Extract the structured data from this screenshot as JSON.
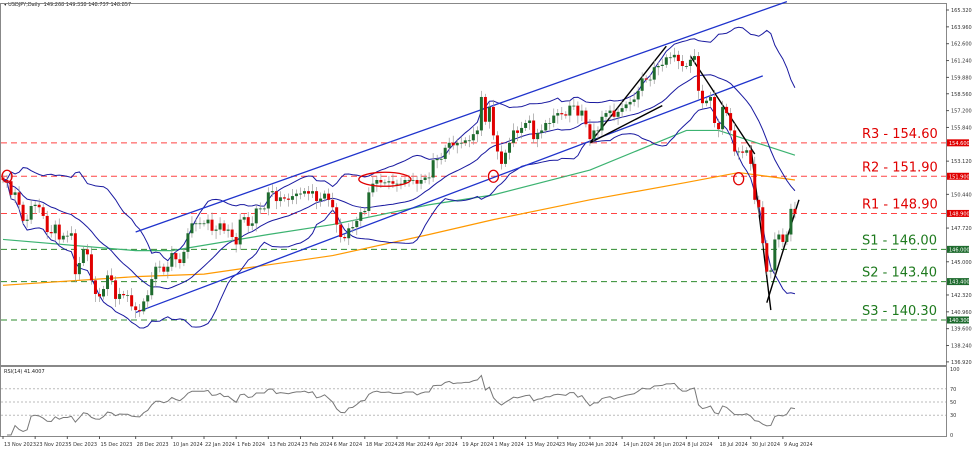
{
  "header": {
    "symbol": "USDJPY,Daily",
    "ohlc": "149.268 149.338 148.737 148.857"
  },
  "rsi_header": "RSI(14) 41.4007",
  "colors": {
    "bull": "#1e6b2e",
    "bear": "#e00000",
    "bollinger": "#1a1aa0",
    "channel": "#1f33cc",
    "ma_green": "#3cb371",
    "ma_orange": "#ff9900",
    "resistance": "#ff4444",
    "support": "#2e8b2e",
    "trendline": "#000000"
  },
  "chart_data": [
    {
      "type": "candlestick",
      "title": "USDJPY,Daily",
      "ylim": [
        136.92,
        165.32
      ],
      "start_date": "13 Nov 2023",
      "closes": [
        151.6,
        151.5,
        150.4,
        150.6,
        149.6,
        148.3,
        148.4,
        149.5,
        149.6,
        149.4,
        148.7,
        147.4,
        147.3,
        148.0,
        146.8,
        147.1,
        147.1,
        147.3,
        144.0,
        144.9,
        146.0,
        145.6,
        143.5,
        142.4,
        142.2,
        142.8,
        143.9,
        143.5,
        142.0,
        142.4,
        142.3,
        142.3,
        141.4,
        141.1,
        141.0,
        141.8,
        142.3,
        143.6,
        144.6,
        144.6,
        144.2,
        144.6,
        145.7,
        145.2,
        144.9,
        145.8,
        147.3,
        148.1,
        148.1,
        148.1,
        148.1,
        148.4,
        147.5,
        147.6,
        148.1,
        147.5,
        147.6,
        147.0,
        146.4,
        148.4,
        148.6,
        147.9,
        148.1,
        149.3,
        149.3,
        149.3,
        150.6,
        150.7,
        149.9,
        150.2,
        150.1,
        150.0,
        150.3,
        150.5,
        150.5,
        150.7,
        150.5,
        150.7,
        149.9,
        150.1,
        150.5,
        150.0,
        149.4,
        148.0,
        147.0,
        146.9,
        147.7,
        147.8,
        148.3,
        149.0,
        149.1,
        150.6,
        151.3,
        151.6,
        151.4,
        151.4,
        151.5,
        151.3,
        151.3,
        151.3,
        151.6,
        151.6,
        151.6,
        151.3,
        151.6,
        151.8,
        151.8,
        153.2,
        153.3,
        153.3,
        154.2,
        154.6,
        154.4,
        154.6,
        154.6,
        154.8,
        154.8,
        155.3,
        155.6,
        158.3,
        156.3,
        157.5,
        155.2,
        153.9,
        152.9,
        153.8,
        154.6,
        155.6,
        155.4,
        155.8,
        156.2,
        156.4,
        154.9,
        155.4,
        155.6,
        156.2,
        156.2,
        156.8,
        157.0,
        156.9,
        156.8,
        157.6,
        157.6,
        156.8,
        157.2,
        156.1,
        154.9,
        155.6,
        155.6,
        156.7,
        157.0,
        157.2,
        156.7,
        157.1,
        157.4,
        157.7,
        157.9,
        158.1,
        158.8,
        159.8,
        159.7,
        159.7,
        160.7,
        160.8,
        160.9,
        161.5,
        161.5,
        161.7,
        161.2,
        160.8,
        160.8,
        161.3,
        161.6,
        158.8,
        157.8,
        158.0,
        158.3,
        156.2,
        155.7,
        157.5,
        157.0,
        155.6,
        153.9,
        153.9,
        153.8,
        154.0,
        152.9,
        150.0,
        149.4,
        146.5,
        144.2,
        144.3,
        146.8,
        147.2,
        146.6,
        147.2,
        149.27,
        148.857
      ],
      "last_candle": {
        "open": 149.268,
        "high": 149.338,
        "low": 148.737,
        "close": 148.857
      },
      "ma_green": [
        [
          "13 Nov 2023",
          146.8
        ],
        [
          "28 Dec 2023",
          145.9
        ],
        [
          "10 Jan 2024",
          145.9
        ],
        [
          "13 Feb 2024",
          147.2
        ],
        [
          "6 Mar 2024",
          148.0
        ],
        [
          "9 Apr 2024",
          149.6
        ],
        [
          "1 May 2024",
          150.4
        ],
        [
          "4 Jun 2024",
          152.4
        ],
        [
          "8 Jul 2024",
          155.6
        ],
        [
          "18 Jul 2024",
          155.6
        ],
        [
          "14 Aug 2024",
          153.6
        ]
      ],
      "ma_orange": [
        [
          "13 Nov 2023",
          143.1
        ],
        [
          "28 Dec 2023",
          143.8
        ],
        [
          "22 Jan 2024",
          144.0
        ],
        [
          "6 Mar 2024",
          145.5
        ],
        [
          "9 Apr 2024",
          147.2
        ],
        [
          "1 May 2024",
          148.4
        ],
        [
          "4 Jun 2024",
          150.0
        ],
        [
          "8 Jul 2024",
          151.4
        ],
        [
          "25 Jul 2024",
          152.2
        ],
        [
          "14 Aug 2024",
          151.6
        ]
      ],
      "channel_lines": [
        [
          [
            "28 Dec 2023",
            147.4
          ],
          [
            "12 Aug 2024",
            166.0
          ]
        ],
        [
          [
            "28 Dec 2023",
            140.9
          ],
          [
            "2 Aug 2024",
            160.0
          ]
        ]
      ],
      "trend_lines": [
        [
          [
            "4 Jun 2024",
            154.6
          ],
          [
            "1 Jul 2024",
            162.4
          ]
        ],
        [
          [
            "4 Jun 2024",
            154.6
          ],
          [
            "28 Jun 2024",
            157.6
          ]
        ],
        [
          [
            "9 Jul 2024",
            161.6
          ],
          [
            "31 Jul 2024",
            153.7
          ]
        ],
        [
          [
            "30 Jul 2024",
            154.4
          ],
          [
            "6 Aug 2024",
            141.1
          ]
        ],
        [
          [
            "5 Aug 2024",
            141.7
          ],
          [
            "15 Aug 2024",
            150.0
          ]
        ]
      ],
      "highlight_ellipses": [
        [
          "14 Nov 2023",
          151.9
        ],
        [
          "1 May 2024",
          151.9
        ],
        [
          "25 Jul 2024",
          151.7
        ]
      ],
      "highlight_band": [
        [
          "18 Mar 2024",
          151.9
        ],
        [
          "28 Mar 2024",
          151.9
        ]
      ],
      "levels": [
        {
          "label": "R3 - 154.60",
          "value": 154.6,
          "tag": "154.600",
          "kind": "resistance"
        },
        {
          "label": "R2 - 151.90",
          "value": 151.9,
          "tag": "151.900",
          "kind": "resistance"
        },
        {
          "label": "R1 - 148.90",
          "value": 148.9,
          "tag": "148.900",
          "kind": "resistance"
        },
        {
          "label": "S1 - 146.00",
          "value": 146.0,
          "tag": "146.000",
          "kind": "support"
        },
        {
          "label": "S2 - 143.40",
          "value": 143.4,
          "tag": "143.400",
          "kind": "support"
        },
        {
          "label": "S3 - 140.30",
          "value": 140.3,
          "tag": "140.300",
          "kind": "support"
        }
      ],
      "y_ticks": [
        "165.320",
        "163.960",
        "162.600",
        "161.240",
        "159.880",
        "158.560",
        "157.200",
        "155.840",
        "153.120",
        "150.440",
        "147.720",
        "145.000",
        "142.320",
        "140.960",
        "139.600",
        "138.240",
        "136.920"
      ],
      "x_ticks": [
        "13 Nov 2023",
        "23 Nov 2023",
        "5 Dec 2023",
        "15 Dec 2023",
        "28 Dec 2023",
        "10 Jan 2024",
        "22 Jan 2024",
        "1 Feb 2024",
        "13 Feb 2024",
        "23 Feb 2024",
        "6 Mar 2024",
        "18 Mar 2024",
        "28 Mar 2024",
        "9 Apr 2024",
        "19 Apr 2024",
        "1 May 2024",
        "13 May 2024",
        "23 May 2024",
        "4 Jun 2024",
        "14 Jun 2024",
        "26 Jun 2024",
        "8 Jul 2024",
        "18 Jul 2024",
        "30 Jul 2024",
        "9 Aug 2024"
      ]
    },
    {
      "type": "line",
      "title": "RSI(14) 41.4007",
      "ylim": [
        0,
        100
      ],
      "y_ticks": [
        "100",
        "70",
        "50",
        "30",
        "0"
      ],
      "period": 14
    }
  ]
}
